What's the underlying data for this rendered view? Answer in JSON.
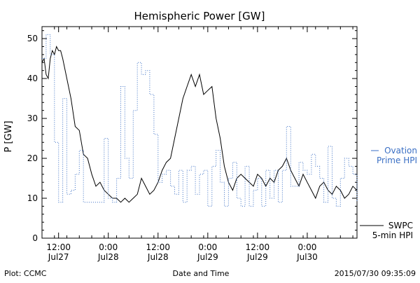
{
  "chart_data": {
    "type": "line",
    "title": "Hemispheric Power [GW]",
    "xlabel": "Date and Time",
    "ylabel": "P [GW]",
    "ylim": [
      0,
      53
    ],
    "xlim": [
      "2015-07-27T08:00",
      "2015-07-30T12:00"
    ],
    "y_ticks": [
      0,
      10,
      20,
      30,
      40,
      50
    ],
    "x_ticks": [
      {
        "t": "2015-07-27T12:00",
        "label": [
          "12:00",
          "Jul27"
        ]
      },
      {
        "t": "2015-07-28T00:00",
        "label": [
          "0:00",
          "Jul28"
        ]
      },
      {
        "t": "2015-07-28T12:00",
        "label": [
          "12:00",
          "Jul28"
        ]
      },
      {
        "t": "2015-07-29T00:00",
        "label": [
          "0:00",
          "Jul29"
        ]
      },
      {
        "t": "2015-07-29T12:00",
        "label": [
          "12:00",
          "Jul29"
        ]
      },
      {
        "t": "2015-07-30T00:00",
        "label": [
          "0:00",
          "Jul30"
        ]
      }
    ],
    "grid": false,
    "series": [
      {
        "name": "SWPC 5-min HPI",
        "legend_lines": [
          "SWPC",
          "5-min HPI"
        ],
        "color": "#000000",
        "style": "solid",
        "points": [
          [
            "2015-07-27T08:00",
            44
          ],
          [
            "2015-07-27T08:30",
            45
          ],
          [
            "2015-07-27T09:00",
            41
          ],
          [
            "2015-07-27T09:30",
            40
          ],
          [
            "2015-07-27T10:00",
            45
          ],
          [
            "2015-07-27T10:30",
            47
          ],
          [
            "2015-07-27T11:00",
            46
          ],
          [
            "2015-07-27T11:30",
            48
          ],
          [
            "2015-07-27T12:00",
            47
          ],
          [
            "2015-07-27T12:30",
            47
          ],
          [
            "2015-07-27T13:00",
            45
          ],
          [
            "2015-07-27T14:00",
            40
          ],
          [
            "2015-07-27T15:00",
            35
          ],
          [
            "2015-07-27T16:00",
            28
          ],
          [
            "2015-07-27T17:00",
            27
          ],
          [
            "2015-07-27T18:00",
            21
          ],
          [
            "2015-07-27T19:00",
            20
          ],
          [
            "2015-07-27T20:00",
            16
          ],
          [
            "2015-07-27T21:00",
            13
          ],
          [
            "2015-07-27T22:00",
            14
          ],
          [
            "2015-07-27T23:00",
            12
          ],
          [
            "2015-07-28T00:00",
            11
          ],
          [
            "2015-07-28T01:00",
            10
          ],
          [
            "2015-07-28T02:00",
            10
          ],
          [
            "2015-07-28T03:00",
            9
          ],
          [
            "2015-07-28T04:00",
            10
          ],
          [
            "2015-07-28T05:00",
            9
          ],
          [
            "2015-07-28T06:00",
            10
          ],
          [
            "2015-07-28T07:00",
            11
          ],
          [
            "2015-07-28T08:00",
            15
          ],
          [
            "2015-07-28T09:00",
            13
          ],
          [
            "2015-07-28T10:00",
            11
          ],
          [
            "2015-07-28T11:00",
            12
          ],
          [
            "2015-07-28T12:00",
            14
          ],
          [
            "2015-07-28T13:00",
            17
          ],
          [
            "2015-07-28T14:00",
            19
          ],
          [
            "2015-07-28T15:00",
            20
          ],
          [
            "2015-07-28T16:00",
            25
          ],
          [
            "2015-07-28T17:00",
            30
          ],
          [
            "2015-07-28T18:00",
            35
          ],
          [
            "2015-07-28T19:00",
            38
          ],
          [
            "2015-07-28T20:00",
            41
          ],
          [
            "2015-07-28T21:00",
            38
          ],
          [
            "2015-07-28T22:00",
            41
          ],
          [
            "2015-07-28T23:00",
            36
          ],
          [
            "2015-07-29T00:00",
            37
          ],
          [
            "2015-07-29T01:00",
            38
          ],
          [
            "2015-07-29T02:00",
            30
          ],
          [
            "2015-07-29T03:00",
            25
          ],
          [
            "2015-07-29T04:00",
            18
          ],
          [
            "2015-07-29T05:00",
            14
          ],
          [
            "2015-07-29T06:00",
            12
          ],
          [
            "2015-07-29T07:00",
            15
          ],
          [
            "2015-07-29T08:00",
            16
          ],
          [
            "2015-07-29T09:00",
            15
          ],
          [
            "2015-07-29T10:00",
            14
          ],
          [
            "2015-07-29T11:00",
            13
          ],
          [
            "2015-07-29T12:00",
            16
          ],
          [
            "2015-07-29T13:00",
            15
          ],
          [
            "2015-07-29T14:00",
            13
          ],
          [
            "2015-07-29T15:00",
            15
          ],
          [
            "2015-07-29T16:00",
            14
          ],
          [
            "2015-07-29T17:00",
            17
          ],
          [
            "2015-07-29T18:00",
            18
          ],
          [
            "2015-07-29T19:00",
            20
          ],
          [
            "2015-07-29T20:00",
            17
          ],
          [
            "2015-07-29T21:00",
            15
          ],
          [
            "2015-07-29T22:00",
            13
          ],
          [
            "2015-07-29T23:00",
            16
          ],
          [
            "2015-07-30T00:00",
            14
          ],
          [
            "2015-07-30T01:00",
            12
          ],
          [
            "2015-07-30T02:00",
            10
          ],
          [
            "2015-07-30T03:00",
            13
          ],
          [
            "2015-07-30T04:00",
            14
          ],
          [
            "2015-07-30T05:00",
            12
          ],
          [
            "2015-07-30T06:00",
            11
          ],
          [
            "2015-07-30T07:00",
            13
          ],
          [
            "2015-07-30T08:00",
            12
          ],
          [
            "2015-07-30T09:00",
            10
          ],
          [
            "2015-07-30T10:00",
            11
          ],
          [
            "2015-07-30T11:00",
            13
          ],
          [
            "2015-07-30T12:00",
            12
          ]
        ]
      },
      {
        "name": "Ovation Prime HPI",
        "legend_lines": [
          "Ovation",
          "Prime HPI"
        ],
        "color": "#3a6fc4",
        "style": "dotted-step",
        "points": [
          [
            "2015-07-27T08:00",
            45
          ],
          [
            "2015-07-27T09:00",
            51
          ],
          [
            "2015-07-27T10:00",
            46
          ],
          [
            "2015-07-27T11:00",
            24
          ],
          [
            "2015-07-27T12:00",
            9
          ],
          [
            "2015-07-27T13:00",
            35
          ],
          [
            "2015-07-27T14:00",
            11
          ],
          [
            "2015-07-27T15:00",
            12
          ],
          [
            "2015-07-27T16:00",
            16
          ],
          [
            "2015-07-27T17:00",
            22
          ],
          [
            "2015-07-27T18:00",
            9
          ],
          [
            "2015-07-27T19:00",
            9
          ],
          [
            "2015-07-27T20:00",
            9
          ],
          [
            "2015-07-27T21:00",
            9
          ],
          [
            "2015-07-27T22:00",
            9
          ],
          [
            "2015-07-27T23:00",
            25
          ],
          [
            "2015-07-28T00:00",
            10
          ],
          [
            "2015-07-28T01:00",
            9
          ],
          [
            "2015-07-28T02:00",
            15
          ],
          [
            "2015-07-28T03:00",
            38
          ],
          [
            "2015-07-28T04:00",
            20
          ],
          [
            "2015-07-28T05:00",
            15
          ],
          [
            "2015-07-28T06:00",
            32
          ],
          [
            "2015-07-28T07:00",
            44
          ],
          [
            "2015-07-28T08:00",
            41
          ],
          [
            "2015-07-28T09:00",
            42
          ],
          [
            "2015-07-28T10:00",
            36
          ],
          [
            "2015-07-28T11:00",
            26
          ],
          [
            "2015-07-28T12:00",
            14
          ],
          [
            "2015-07-28T13:00",
            16
          ],
          [
            "2015-07-28T14:00",
            17
          ],
          [
            "2015-07-28T15:00",
            13
          ],
          [
            "2015-07-28T16:00",
            11
          ],
          [
            "2015-07-28T17:00",
            17
          ],
          [
            "2015-07-28T18:00",
            9
          ],
          [
            "2015-07-28T19:00",
            17
          ],
          [
            "2015-07-28T20:00",
            18
          ],
          [
            "2015-07-28T21:00",
            11
          ],
          [
            "2015-07-28T22:00",
            16
          ],
          [
            "2015-07-28T23:00",
            17
          ],
          [
            "2015-07-29T00:00",
            8
          ],
          [
            "2015-07-29T01:00",
            18
          ],
          [
            "2015-07-29T02:00",
            22
          ],
          [
            "2015-07-29T03:00",
            14
          ],
          [
            "2015-07-29T04:00",
            8
          ],
          [
            "2015-07-29T05:00",
            15
          ],
          [
            "2015-07-29T06:00",
            19
          ],
          [
            "2015-07-29T07:00",
            10
          ],
          [
            "2015-07-29T08:00",
            8
          ],
          [
            "2015-07-29T09:00",
            18
          ],
          [
            "2015-07-29T10:00",
            8
          ],
          [
            "2015-07-29T11:00",
            12
          ],
          [
            "2015-07-29T12:00",
            15
          ],
          [
            "2015-07-29T13:00",
            8
          ],
          [
            "2015-07-29T14:00",
            17
          ],
          [
            "2015-07-29T15:00",
            10
          ],
          [
            "2015-07-29T16:00",
            17
          ],
          [
            "2015-07-29T17:00",
            9
          ],
          [
            "2015-07-29T18:00",
            17
          ],
          [
            "2015-07-29T19:00",
            28
          ],
          [
            "2015-07-29T20:00",
            13
          ],
          [
            "2015-07-29T21:00",
            13
          ],
          [
            "2015-07-29T22:00",
            19
          ],
          [
            "2015-07-29T23:00",
            17
          ],
          [
            "2015-07-30T00:00",
            16
          ],
          [
            "2015-07-30T01:00",
            21
          ],
          [
            "2015-07-30T02:00",
            18
          ],
          [
            "2015-07-30T03:00",
            15
          ],
          [
            "2015-07-30T04:00",
            9
          ],
          [
            "2015-07-30T05:00",
            23
          ],
          [
            "2015-07-30T06:00",
            10
          ],
          [
            "2015-07-30T07:00",
            8
          ],
          [
            "2015-07-30T08:00",
            15
          ],
          [
            "2015-07-30T09:00",
            20
          ],
          [
            "2015-07-30T10:00",
            18
          ],
          [
            "2015-07-30T11:00",
            16
          ],
          [
            "2015-07-30T12:00",
            9
          ]
        ]
      }
    ]
  },
  "footer": {
    "left": "Plot: CCMC",
    "center": "Date and Time",
    "right": "2015/07/30 09:35:09"
  }
}
